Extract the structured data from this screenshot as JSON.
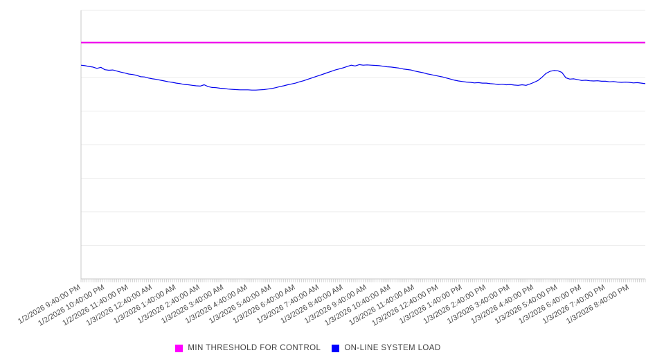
{
  "chart_data": {
    "type": "line",
    "title": "",
    "xlabel": "",
    "ylabel": "",
    "grid": true,
    "x_axis": {
      "labels": [
        "1/2/2026 9:40:00 PM",
        "1/2/2026 10:40:00 PM",
        "1/2/2026 11:40:00 PM",
        "1/3/2026 12:40:00 AM",
        "1/3/2026 1:40:00 AM",
        "1/3/2026 2:40:00 AM",
        "1/3/2026 3:40:00 AM",
        "1/3/2026 4:40:00 AM",
        "1/3/2026 5:40:00 AM",
        "1/3/2026 6:40:00 AM",
        "1/3/2026 7:40:00 AM",
        "1/3/2026 8:40:00 AM",
        "1/3/2026 9:40:00 AM",
        "1/3/2026 10:40:00 AM",
        "1/3/2026 11:40:00 AM",
        "1/3/2026 12:40:00 PM",
        "1/3/2026 1:40:00 PM",
        "1/3/2026 2:40:00 PM",
        "1/3/2026 3:40:00 PM",
        "1/3/2026 4:40:00 PM",
        "1/3/2026 5:40:00 PM",
        "1/3/2026 6:40:00 PM",
        "1/3/2026 7:40:00 PM",
        "1/3/2026 8:40:00 PM"
      ],
      "label_interval_minutes": 60,
      "tick_interval_minutes": 5,
      "total_span_hours": 23.667,
      "label_rotation_deg": -30
    },
    "y_axis": {
      "min": 0,
      "max": 100,
      "gridline_divisions": 8,
      "labels_visible": false
    },
    "legend": {
      "position": "bottom-center",
      "items": [
        {
          "label": "MIN THRESHOLD FOR CONTROL",
          "color": "#ff00ff"
        },
        {
          "label": "ON-LINE SYSTEM LOAD",
          "color": "#0000ff"
        }
      ]
    },
    "series": [
      {
        "name": "MIN THRESHOLD FOR CONTROL",
        "type": "constant",
        "color": "#f000ee",
        "value": 88
      },
      {
        "name": "ON-LINE SYSTEM LOAD",
        "type": "line",
        "color": "#0000ee",
        "sample_interval_minutes": 10,
        "values": [
          79.6,
          79.4,
          79.1,
          78.9,
          78.4,
          78.8,
          77.9,
          77.7,
          77.8,
          77.4,
          77.0,
          76.7,
          76.3,
          76.1,
          75.8,
          75.3,
          75.2,
          74.8,
          74.5,
          74.3,
          74.0,
          73.7,
          73.4,
          73.2,
          72.9,
          72.7,
          72.4,
          72.3,
          72.1,
          71.9,
          71.8,
          72.3,
          71.6,
          71.3,
          71.2,
          71.0,
          70.9,
          70.7,
          70.6,
          70.5,
          70.4,
          70.4,
          70.4,
          70.3,
          70.3,
          70.4,
          70.5,
          70.7,
          70.9,
          71.2,
          71.6,
          71.9,
          72.3,
          72.6,
          72.9,
          73.4,
          73.8,
          74.3,
          74.8,
          75.3,
          75.8,
          76.3,
          76.8,
          77.3,
          77.8,
          78.2,
          78.6,
          79.1,
          79.6,
          79.3,
          79.8,
          79.6,
          79.7,
          79.6,
          79.5,
          79.4,
          79.2,
          79.0,
          78.9,
          78.7,
          78.5,
          78.2,
          78.0,
          77.8,
          77.4,
          77.1,
          76.8,
          76.4,
          76.1,
          75.8,
          75.5,
          75.2,
          74.8,
          74.4,
          74.0,
          73.7,
          73.5,
          73.3,
          73.2,
          73.0,
          73.1,
          72.9,
          72.9,
          72.7,
          72.6,
          72.4,
          72.5,
          72.3,
          72.4,
          72.2,
          72.1,
          72.3,
          72.1,
          72.6,
          73.2,
          73.9,
          75.1,
          76.5,
          77.3,
          77.6,
          77.5,
          76.9,
          74.9,
          74.4,
          74.5,
          74.2,
          73.9,
          74.0,
          73.8,
          73.7,
          73.8,
          73.6,
          73.6,
          73.4,
          73.5,
          73.3,
          73.2,
          73.3,
          73.2,
          73.0,
          73.1,
          72.9,
          72.7
        ]
      }
    ],
    "colors": {
      "gridline": "#ebebeb",
      "axis": "#c9c9c9",
      "tick": "#c2c2c2",
      "label_text": "#4d4d4d",
      "legend_text": "#3f3f3f",
      "background": "#ffffff"
    }
  }
}
